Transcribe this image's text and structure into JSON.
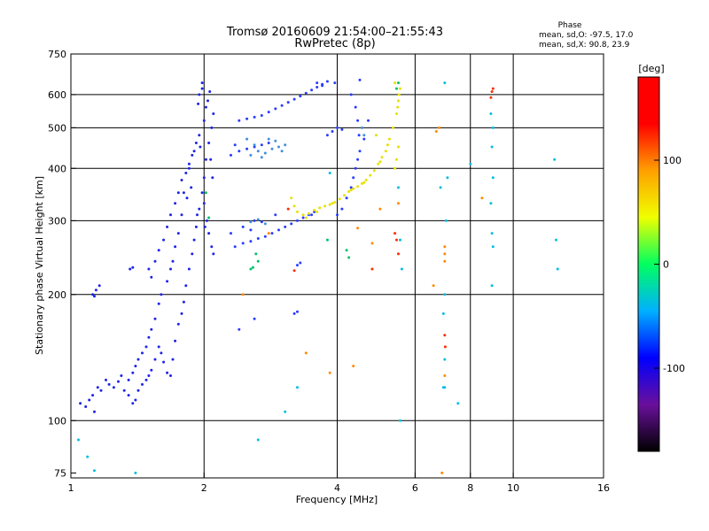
{
  "chart_data": {
    "type": "scatter",
    "title": "Tromsø 20160609 21:54:00–21:55:43",
    "subtitle": "RwPretec (8p)",
    "xlabel": "Frequency [MHz]",
    "ylabel": "Stationary phase Virtual Height [km]",
    "x_scale": "log",
    "y_scale": "log",
    "xlim": [
      1,
      16
    ],
    "ylim": [
      73,
      750
    ],
    "x_ticks": [
      1,
      2,
      4,
      6,
      8,
      10,
      16
    ],
    "x_tick_labels": [
      "1",
      "2",
      "4",
      "6",
      "8",
      "10",
      "16"
    ],
    "y_ticks": [
      75,
      100,
      200,
      300,
      400,
      500,
      600,
      750
    ],
    "y_tick_labels": [
      "75",
      "100",
      "200",
      "300",
      "400",
      "500",
      "600",
      "750"
    ],
    "grid_x": [
      2,
      4,
      6,
      8,
      10
    ],
    "grid_y": [
      100,
      200,
      300,
      400,
      500,
      600
    ],
    "grid": true,
    "stats": {
      "heading": "Phase",
      "line_o": "mean, sd,O:  -97.5, 17.0",
      "line_x": "mean, sd,X:  90.8, 23.9"
    },
    "colorbar": {
      "label": "[deg]",
      "ticks": [
        100,
        0,
        -100
      ],
      "tick_labels": [
        "100",
        "0",
        "-100"
      ],
      "range": [
        -180,
        180
      ],
      "colormap": [
        "#000000",
        "#6a0f9c",
        "#0000ff",
        "#00b0ff",
        "#00ff60",
        "#f0ff00",
        "#ffa000",
        "#ff0000",
        "#ff0000"
      ]
    },
    "series": [
      {
        "values": [
          [
            1.05,
            110
          ],
          [
            1.08,
            108
          ],
          [
            1.1,
            112
          ],
          [
            1.12,
            115
          ],
          [
            1.13,
            105
          ],
          [
            1.15,
            120
          ],
          [
            1.17,
            118
          ],
          [
            1.2,
            125
          ],
          [
            1.22,
            122
          ],
          [
            1.25,
            120
          ],
          [
            1.28,
            124
          ],
          [
            1.3,
            128
          ],
          [
            1.32,
            118
          ],
          [
            1.35,
            115
          ],
          [
            1.38,
            110
          ],
          [
            1.4,
            112
          ],
          [
            1.42,
            118
          ],
          [
            1.45,
            122
          ],
          [
            1.48,
            125
          ],
          [
            1.5,
            128
          ],
          [
            1.52,
            132
          ],
          [
            1.55,
            140
          ],
          [
            1.58,
            150
          ],
          [
            1.6,
            145
          ],
          [
            1.62,
            138
          ],
          [
            1.65,
            130
          ],
          [
            1.68,
            128
          ],
          [
            1.7,
            140
          ],
          [
            1.72,
            155
          ],
          [
            1.75,
            170
          ],
          [
            1.78,
            180
          ],
          [
            1.8,
            192
          ],
          [
            1.82,
            210
          ],
          [
            1.85,
            230
          ],
          [
            1.88,
            250
          ],
          [
            1.9,
            270
          ],
          [
            1.92,
            290
          ],
          [
            1.95,
            320
          ],
          [
            1.98,
            350
          ],
          [
            2.0,
            380
          ],
          [
            2.02,
            420
          ],
          [
            2.05,
            460
          ],
          [
            2.08,
            500
          ],
          [
            2.1,
            540
          ],
          [
            1.95,
            600
          ],
          [
            1.98,
            620
          ],
          [
            2.02,
            560
          ],
          [
            1.85,
            400
          ],
          [
            1.88,
            430
          ],
          [
            1.8,
            350
          ],
          [
            1.78,
            310
          ],
          [
            1.75,
            280
          ],
          [
            1.72,
            260
          ],
          [
            1.7,
            240
          ],
          [
            1.68,
            230
          ],
          [
            1.65,
            215
          ],
          [
            1.6,
            200
          ],
          [
            1.58,
            190
          ],
          [
            1.55,
            175
          ],
          [
            1.52,
            165
          ],
          [
            1.5,
            158
          ],
          [
            1.48,
            150
          ],
          [
            1.45,
            145
          ],
          [
            1.42,
            140
          ],
          [
            1.4,
            135
          ],
          [
            1.38,
            130
          ],
          [
            1.35,
            125
          ],
          [
            1.5,
            230
          ],
          [
            1.52,
            220
          ],
          [
            1.55,
            240
          ],
          [
            1.58,
            255
          ],
          [
            1.62,
            270
          ],
          [
            1.65,
            290
          ],
          [
            1.68,
            310
          ],
          [
            1.72,
            330
          ],
          [
            1.75,
            350
          ],
          [
            1.78,
            375
          ],
          [
            1.82,
            390
          ],
          [
            1.85,
            410
          ],
          [
            1.9,
            440
          ],
          [
            1.92,
            460
          ],
          [
            1.95,
            480
          ],
          [
            2.0,
            330
          ],
          [
            2.03,
            300
          ],
          [
            2.05,
            280
          ],
          [
            2.08,
            260
          ],
          [
            2.1,
            250
          ],
          [
            1.12,
            200
          ],
          [
            1.14,
            205
          ],
          [
            1.16,
            210
          ],
          [
            1.13,
            198
          ],
          [
            1.36,
            230
          ],
          [
            1.38,
            232
          ],
          [
            1.98,
            640
          ],
          [
            2.06,
            610
          ],
          [
            2.04,
            580
          ],
          [
            1.94,
            570
          ],
          [
            2.0,
            520
          ],
          [
            1.96,
            450
          ],
          [
            2.07,
            420
          ],
          [
            2.09,
            380
          ],
          [
            2.01,
            290
          ],
          [
            1.93,
            310
          ],
          [
            1.87,
            360
          ],
          [
            1.83,
            340
          ]
        ]
      },
      {
        "values": [
          [
            2.35,
            260
          ],
          [
            2.45,
            265
          ],
          [
            2.55,
            268
          ],
          [
            2.65,
            272
          ],
          [
            2.75,
            275
          ],
          [
            2.85,
            280
          ],
          [
            2.95,
            285
          ],
          [
            3.05,
            290
          ],
          [
            3.15,
            295
          ],
          [
            3.25,
            300
          ],
          [
            3.35,
            305
          ],
          [
            3.45,
            310
          ],
          [
            3.55,
            315
          ],
          [
            2.4,
            520
          ],
          [
            2.5,
            525
          ],
          [
            2.6,
            530
          ],
          [
            2.7,
            535
          ],
          [
            2.8,
            545
          ],
          [
            2.9,
            555
          ],
          [
            3.0,
            565
          ],
          [
            3.1,
            575
          ],
          [
            3.2,
            585
          ],
          [
            3.3,
            595
          ],
          [
            3.4,
            605
          ],
          [
            3.5,
            615
          ],
          [
            3.6,
            625
          ],
          [
            3.7,
            635
          ],
          [
            3.8,
            645
          ],
          [
            2.4,
            440
          ],
          [
            2.5,
            445
          ],
          [
            2.6,
            450
          ],
          [
            2.7,
            455
          ],
          [
            2.8,
            460
          ],
          [
            2.35,
            455
          ],
          [
            2.3,
            430
          ],
          [
            3.8,
            480
          ],
          [
            3.9,
            490
          ],
          [
            4.0,
            500
          ],
          [
            4.1,
            495
          ],
          [
            4.3,
            600
          ],
          [
            4.4,
            560
          ],
          [
            4.45,
            520
          ],
          [
            4.48,
            480
          ],
          [
            4.5,
            440
          ],
          [
            4.45,
            420
          ],
          [
            4.4,
            400
          ],
          [
            4.35,
            380
          ],
          [
            4.3,
            360
          ],
          [
            4.2,
            340
          ],
          [
            4.1,
            320
          ],
          [
            4.0,
            310
          ],
          [
            4.6,
            470
          ],
          [
            4.7,
            520
          ],
          [
            3.7,
            630
          ],
          [
            3.6,
            640
          ],
          [
            2.6,
            300
          ],
          [
            2.7,
            298
          ],
          [
            2.9,
            310
          ],
          [
            2.3,
            280
          ],
          [
            2.45,
            290
          ],
          [
            2.55,
            285
          ],
          [
            3.25,
            235
          ],
          [
            3.3,
            238
          ],
          [
            3.2,
            180
          ],
          [
            3.25,
            182
          ],
          [
            2.4,
            165
          ],
          [
            2.6,
            175
          ],
          [
            3.5,
            310
          ],
          [
            4.5,
            650
          ],
          [
            3.95,
            640
          ]
        ]
      },
      {
        "values": [
          [
            2.55,
            430
          ],
          [
            2.65,
            440
          ],
          [
            2.75,
            435
          ],
          [
            2.85,
            445
          ],
          [
            2.95,
            450
          ],
          [
            3.05,
            455
          ],
          [
            2.9,
            465
          ],
          [
            2.7,
            425
          ],
          [
            2.6,
            455
          ],
          [
            2.5,
            470
          ],
          [
            3.0,
            440
          ],
          [
            2.8,
            470
          ],
          [
            4.55,
            500
          ],
          [
            4.6,
            480
          ],
          [
            2.55,
            298
          ],
          [
            2.65,
            302
          ],
          [
            2.75,
            295
          ]
        ]
      },
      {
        "values": [
          [
            3.15,
            340
          ],
          [
            3.2,
            325
          ],
          [
            3.25,
            315
          ],
          [
            3.35,
            310
          ],
          [
            3.45,
            312
          ],
          [
            3.55,
            318
          ],
          [
            3.65,
            322
          ],
          [
            3.75,
            325
          ],
          [
            3.85,
            328
          ],
          [
            3.95,
            332
          ],
          [
            4.05,
            338
          ],
          [
            4.15,
            345
          ],
          [
            4.25,
            352
          ],
          [
            4.35,
            358
          ],
          [
            4.45,
            362
          ],
          [
            4.55,
            368
          ],
          [
            4.65,
            375
          ],
          [
            4.75,
            385
          ],
          [
            4.85,
            395
          ],
          [
            4.95,
            410
          ],
          [
            5.05,
            425
          ],
          [
            5.15,
            440
          ],
          [
            5.25,
            470
          ],
          [
            5.35,
            500
          ],
          [
            5.45,
            540
          ],
          [
            5.5,
            580
          ],
          [
            5.55,
            620
          ],
          [
            5.5,
            450
          ],
          [
            5.45,
            420
          ],
          [
            5.4,
            400
          ],
          [
            4.9,
            480
          ],
          [
            5.4,
            640
          ],
          [
            5.52,
            600
          ],
          [
            5.48,
            560
          ],
          [
            3.4,
            305
          ],
          [
            3.6,
            315
          ],
          [
            3.9,
            330
          ],
          [
            4.3,
            355
          ],
          [
            4.6,
            370
          ],
          [
            5.0,
            415
          ],
          [
            5.2,
            455
          ]
        ]
      },
      {
        "values": [
          [
            3.1,
            320
          ],
          [
            5.4,
            280
          ],
          [
            5.45,
            270
          ],
          [
            5.5,
            250
          ],
          [
            4.8,
            230
          ],
          [
            7.0,
            160
          ],
          [
            7.02,
            150
          ],
          [
            8.9,
            590
          ],
          [
            8.95,
            610
          ],
          [
            9.0,
            620
          ],
          [
            3.2,
            228
          ]
        ]
      },
      {
        "values": [
          [
            2.55,
            230
          ],
          [
            2.58,
            232
          ],
          [
            2.62,
            250
          ],
          [
            2.65,
            240
          ],
          [
            5.45,
            620
          ],
          [
            5.5,
            640
          ],
          [
            3.8,
            270
          ],
          [
            4.2,
            255
          ],
          [
            4.25,
            245
          ],
          [
            2.05,
            305
          ],
          [
            2.02,
            350
          ]
        ]
      },
      {
        "values": [
          [
            5.5,
            330
          ],
          [
            4.8,
            265
          ],
          [
            2.8,
            280
          ],
          [
            3.4,
            145
          ],
          [
            7.0,
            250
          ],
          [
            7.0,
            260
          ],
          [
            8.5,
            340
          ],
          [
            2.45,
            200
          ],
          [
            3.85,
            130
          ],
          [
            4.35,
            135
          ],
          [
            7.0,
            128
          ],
          [
            6.9,
            75
          ],
          [
            6.8,
            500
          ],
          [
            6.7,
            490
          ],
          [
            6.6,
            210
          ],
          [
            7.0,
            240
          ],
          [
            5.0,
            320
          ],
          [
            4.45,
            288
          ]
        ]
      },
      {
        "values": [
          [
            7.0,
            640
          ],
          [
            9.0,
            500
          ],
          [
            8.9,
            540
          ],
          [
            8.95,
            450
          ],
          [
            9.0,
            380
          ],
          [
            8.9,
            330
          ],
          [
            8.95,
            280
          ],
          [
            9.0,
            260
          ],
          [
            8.95,
            210
          ],
          [
            7.0,
            200
          ],
          [
            6.95,
            180
          ],
          [
            7.0,
            140
          ],
          [
            7.0,
            120
          ],
          [
            6.85,
            360
          ],
          [
            5.5,
            360
          ],
          [
            3.85,
            390
          ],
          [
            2.65,
            90
          ],
          [
            3.05,
            105
          ],
          [
            5.55,
            100
          ],
          [
            1.4,
            75
          ],
          [
            1.04,
            90
          ],
          [
            1.09,
            82
          ],
          [
            1.13,
            76
          ],
          [
            12.5,
            270
          ],
          [
            12.6,
            230
          ],
          [
            12.4,
            420
          ],
          [
            7.5,
            110
          ],
          [
            8.0,
            410
          ],
          [
            7.05,
            300
          ],
          [
            7.1,
            380
          ],
          [
            6.95,
            120
          ],
          [
            5.6,
            230
          ],
          [
            5.55,
            270
          ],
          [
            3.25,
            120
          ]
        ]
      }
    ]
  }
}
